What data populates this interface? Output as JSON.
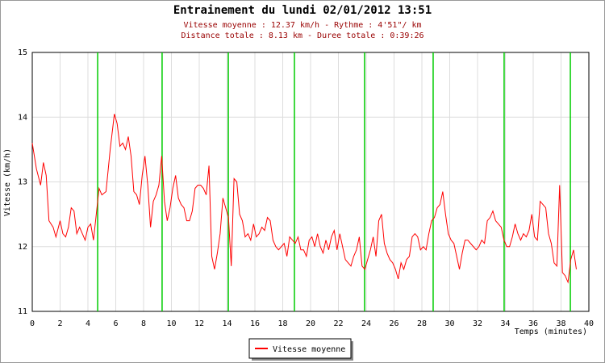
{
  "chart_data": {
    "type": "line",
    "title": "Entrainement du lundi 02/01/2012 13:51",
    "subtitle": [
      "Vitesse moyenne : 12.37 km/h - Rythme : 4'51\"/ km",
      "Distance totale : 8.13 km - Duree totale : 0:39:26"
    ],
    "xlabel": "Temps (minutes)",
    "ylabel": "Vitesse (km/h)",
    "xlim": [
      0,
      40
    ],
    "ylim": [
      11,
      15
    ],
    "xticks": [
      0,
      2,
      4,
      6,
      8,
      10,
      12,
      14,
      16,
      18,
      20,
      22,
      24,
      26,
      28,
      30,
      32,
      34,
      36,
      38,
      40
    ],
    "yticks": [
      11,
      12,
      13,
      14,
      15
    ],
    "grid": true,
    "legend": "bottom",
    "markers": {
      "color": "#00cc00",
      "x": [
        4.7,
        9.33,
        14.09,
        18.84,
        23.88,
        28.81,
        33.91,
        38.67
      ]
    },
    "x": [
      0,
      0.3,
      0.6,
      0.8,
      1.0,
      1.2,
      1.5,
      1.7,
      2.0,
      2.2,
      2.4,
      2.6,
      2.8,
      3.0,
      3.2,
      3.4,
      3.6,
      3.8,
      4.0,
      4.2,
      4.4,
      4.6,
      4.8,
      5.0,
      5.3,
      5.6,
      5.9,
      6.1,
      6.3,
      6.5,
      6.7,
      6.9,
      7.1,
      7.3,
      7.5,
      7.7,
      7.9,
      8.1,
      8.3,
      8.5,
      8.7,
      8.9,
      9.1,
      9.3,
      9.5,
      9.7,
      9.9,
      10.1,
      10.3,
      10.5,
      10.7,
      10.9,
      11.1,
      11.3,
      11.5,
      11.7,
      11.9,
      12.1,
      12.3,
      12.5,
      12.7,
      12.9,
      13.1,
      13.3,
      13.5,
      13.7,
      13.9,
      14.1,
      14.3,
      14.5,
      14.7,
      14.9,
      15.1,
      15.3,
      15.5,
      15.7,
      15.9,
      16.1,
      16.3,
      16.5,
      16.7,
      16.9,
      17.1,
      17.3,
      17.5,
      17.7,
      17.9,
      18.1,
      18.3,
      18.5,
      18.7,
      18.9,
      19.1,
      19.3,
      19.5,
      19.7,
      19.9,
      20.1,
      20.3,
      20.5,
      20.7,
      20.9,
      21.1,
      21.3,
      21.5,
      21.7,
      21.9,
      22.1,
      22.3,
      22.5,
      22.7,
      22.9,
      23.1,
      23.3,
      23.5,
      23.7,
      23.9,
      24.1,
      24.3,
      24.5,
      24.7,
      24.9,
      25.1,
      25.3,
      25.5,
      25.7,
      25.9,
      26.1,
      26.3,
      26.5,
      26.7,
      26.9,
      27.1,
      27.3,
      27.5,
      27.7,
      27.9,
      28.1,
      28.3,
      28.5,
      28.7,
      28.9,
      29.1,
      29.3,
      29.5,
      29.7,
      29.9,
      30.1,
      30.3,
      30.5,
      30.7,
      30.9,
      31.1,
      31.3,
      31.5,
      31.7,
      31.9,
      32.1,
      32.3,
      32.5,
      32.7,
      32.9,
      33.1,
      33.3,
      33.5,
      33.7,
      33.9,
      34.1,
      34.3,
      34.5,
      34.7,
      34.9,
      35.1,
      35.3,
      35.5,
      35.7,
      35.9,
      36.1,
      36.3,
      36.5,
      36.7,
      36.9,
      37.1,
      37.3,
      37.5,
      37.7,
      37.9,
      38.1,
      38.3,
      38.5,
      38.7,
      38.9,
      39.1
    ],
    "series": [
      {
        "name": "Vitesse moyenne",
        "color": "#ff0000",
        "values": [
          13.6,
          13.2,
          12.95,
          13.3,
          13.1,
          12.4,
          12.3,
          12.15,
          12.4,
          12.2,
          12.15,
          12.3,
          12.6,
          12.55,
          12.2,
          12.3,
          12.2,
          12.1,
          12.3,
          12.35,
          12.1,
          12.5,
          12.9,
          12.8,
          12.85,
          13.5,
          14.05,
          13.9,
          13.55,
          13.6,
          13.5,
          13.7,
          13.4,
          12.85,
          12.8,
          12.65,
          13.1,
          13.4,
          12.95,
          12.3,
          12.7,
          12.8,
          12.95,
          13.4,
          12.7,
          12.4,
          12.6,
          12.9,
          13.1,
          12.75,
          12.65,
          12.6,
          12.4,
          12.4,
          12.55,
          12.9,
          12.95,
          12.95,
          12.9,
          12.8,
          13.25,
          11.85,
          11.65,
          11.9,
          12.2,
          12.75,
          12.6,
          12.45,
          11.7,
          13.05,
          13.0,
          12.5,
          12.4,
          12.15,
          12.2,
          12.1,
          12.35,
          12.15,
          12.2,
          12.3,
          12.25,
          12.45,
          12.4,
          12.1,
          12.0,
          11.95,
          12.0,
          12.05,
          11.85,
          12.15,
          12.1,
          12.05,
          12.15,
          11.95,
          11.95,
          11.85,
          12.1,
          12.15,
          12.0,
          12.2,
          12.0,
          11.9,
          12.1,
          11.95,
          12.15,
          12.25,
          11.95,
          12.2,
          12.0,
          11.8,
          11.75,
          11.7,
          11.85,
          11.95,
          12.15,
          11.7,
          11.65,
          11.8,
          11.95,
          12.15,
          11.85,
          12.4,
          12.5,
          12.05,
          11.9,
          11.8,
          11.75,
          11.65,
          11.5,
          11.75,
          11.65,
          11.8,
          11.85,
          12.15,
          12.2,
          12.15,
          11.95,
          12.0,
          11.95,
          12.2,
          12.4,
          12.45,
          12.6,
          12.65,
          12.85,
          12.5,
          12.2,
          12.1,
          12.05,
          11.85,
          11.65,
          11.9,
          12.1,
          12.1,
          12.05,
          12.0,
          11.95,
          12.0,
          12.1,
          12.05,
          12.4,
          12.45,
          12.55,
          12.4,
          12.35,
          12.3,
          12.1,
          12.0,
          12.0,
          12.15,
          12.35,
          12.2,
          12.1,
          12.2,
          12.15,
          12.25,
          12.5,
          12.15,
          12.1,
          12.7,
          12.65,
          12.6,
          12.2,
          12.05,
          11.75,
          11.7,
          12.95,
          11.6,
          11.55,
          11.45,
          11.8,
          11.95,
          11.65
        ]
      }
    ]
  }
}
